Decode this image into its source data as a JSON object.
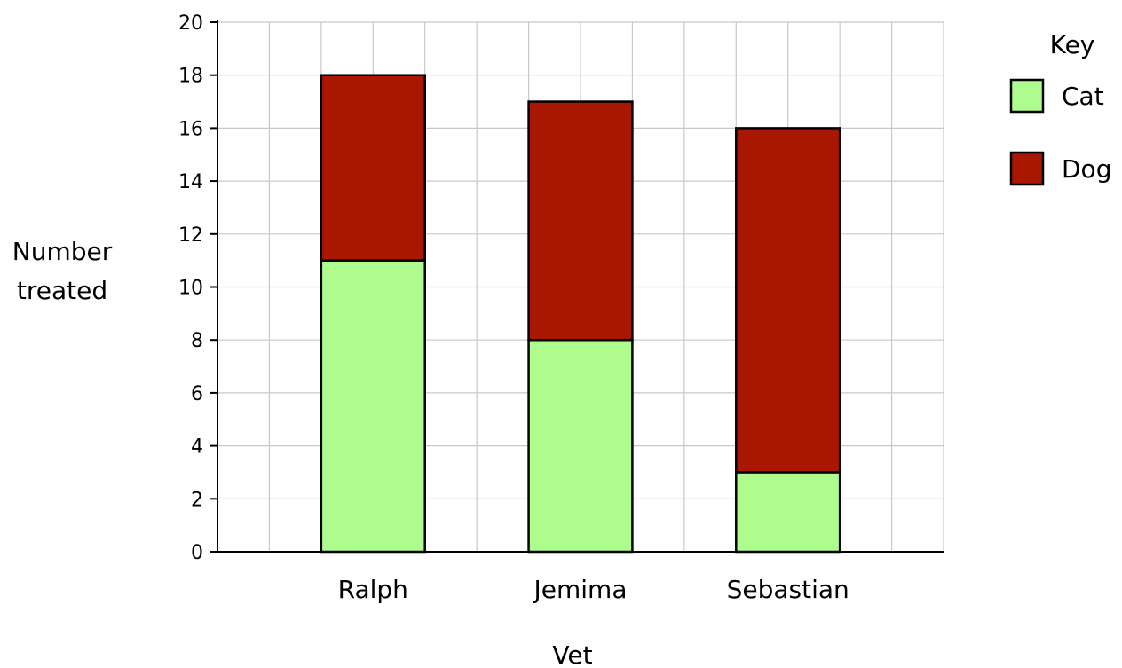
{
  "chart_data": {
    "type": "bar",
    "stacked": true,
    "categories": [
      "Ralph",
      "Jemima",
      "Sebastian"
    ],
    "series": [
      {
        "name": "Cat",
        "values": [
          11,
          8,
          3
        ],
        "color": "#aefb8e"
      },
      {
        "name": "Dog",
        "values": [
          7,
          9,
          13
        ],
        "color": "#aa1700"
      }
    ],
    "xlabel": "Vet",
    "ylabel": [
      "Number",
      "treated"
    ],
    "ylim": [
      0,
      20
    ],
    "yticks": [
      0,
      2,
      4,
      6,
      8,
      10,
      12,
      14,
      16,
      18,
      20
    ],
    "grid": true,
    "legend": {
      "title": "Key",
      "position": "top-right"
    }
  }
}
